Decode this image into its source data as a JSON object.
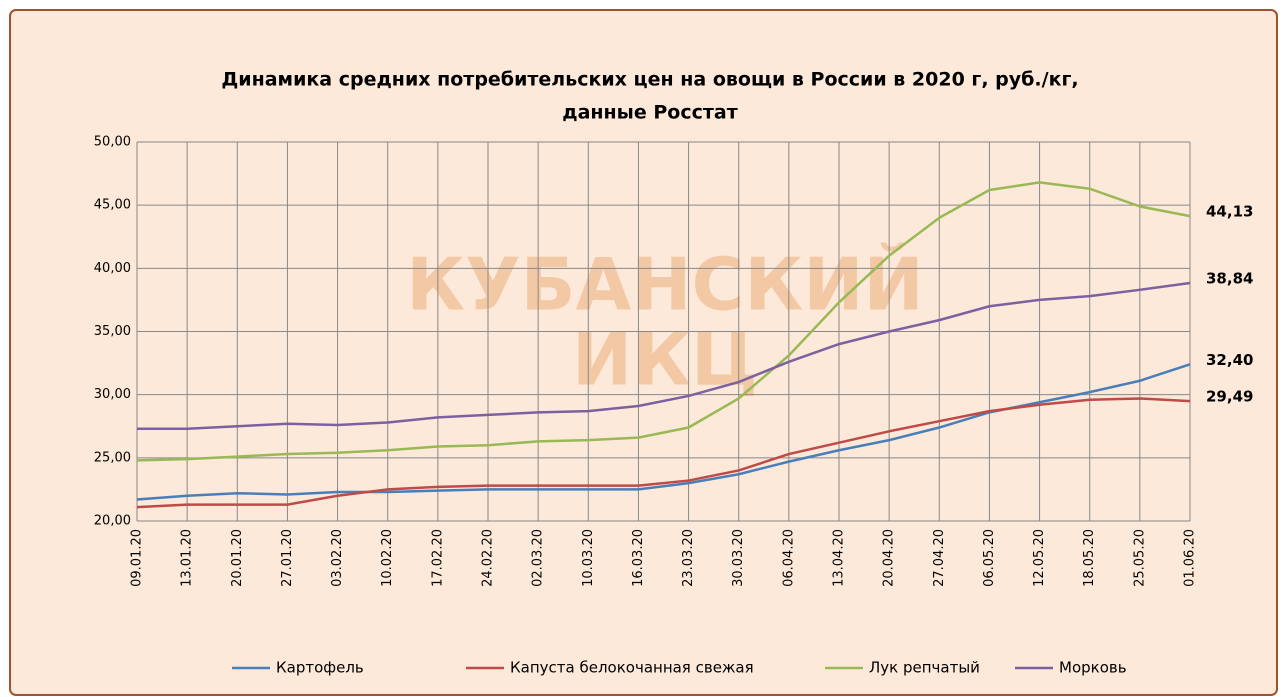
{
  "chart_data": {
    "type": "line",
    "title": [
      "Динамика  средних потребительских цен на овощи в России  в 2020 г, руб./кг,",
      "данные Росстат"
    ],
    "watermark": [
      "КУБАНСКИЙ",
      "ИКЦ"
    ],
    "categories": [
      "09.01.20",
      "13.01.20",
      "20.01.20",
      "27.01.20",
      "03.02.20",
      "10.02.20",
      "17.02.20",
      "24.02.20",
      "02.03.20",
      "10.03.20",
      "16.03.20",
      "23.03.20",
      "30.03.20",
      "06.04.20",
      "13.04.20",
      "20.04.20",
      "27.04.20",
      "06.05.20",
      "12.05.20",
      "18.05.20",
      "25.05.20",
      "01.06.20"
    ],
    "series": [
      {
        "name": "Картофель",
        "color": "#4a7ebb",
        "values": [
          21.7,
          22.0,
          22.2,
          22.1,
          22.3,
          22.3,
          22.4,
          22.5,
          22.5,
          22.5,
          22.5,
          23.0,
          23.7,
          24.7,
          25.6,
          26.4,
          27.4,
          28.6,
          29.4,
          30.2,
          31.1,
          32.4
        ],
        "value_labels": [
          null,
          null,
          null,
          null,
          null,
          null,
          null,
          null,
          null,
          null,
          null,
          null,
          null,
          null,
          null,
          null,
          null,
          null,
          null,
          null,
          null,
          "32,40"
        ]
      },
      {
        "name": "Капуста белокочанная  свежая",
        "color": "#be4b48",
        "values": [
          21.1,
          21.3,
          21.3,
          21.3,
          22.0,
          22.5,
          22.7,
          22.8,
          22.8,
          22.8,
          22.8,
          23.2,
          24.0,
          25.3,
          26.2,
          27.1,
          27.9,
          28.7,
          29.2,
          29.6,
          29.7,
          29.49
        ],
        "value_labels": [
          null,
          null,
          null,
          null,
          null,
          null,
          null,
          null,
          null,
          null,
          null,
          null,
          null,
          null,
          null,
          null,
          null,
          null,
          null,
          null,
          null,
          "29,49"
        ]
      },
      {
        "name": "Лук репчатый",
        "color": "#98b954",
        "values": [
          24.8,
          24.9,
          25.1,
          25.3,
          25.4,
          25.6,
          25.9,
          26.0,
          26.3,
          26.4,
          26.6,
          27.4,
          29.7,
          33.1,
          37.3,
          41.0,
          44.0,
          46.2,
          46.8,
          46.3,
          44.9,
          44.13
        ],
        "value_labels": [
          null,
          null,
          null,
          null,
          null,
          null,
          null,
          null,
          null,
          null,
          null,
          null,
          null,
          null,
          null,
          null,
          null,
          null,
          null,
          null,
          null,
          "44,13"
        ]
      },
      {
        "name": "Морковь",
        "color": "#7d60a0",
        "values": [
          27.3,
          27.3,
          27.5,
          27.7,
          27.6,
          27.8,
          28.2,
          28.4,
          28.6,
          28.7,
          29.1,
          29.9,
          31.0,
          32.6,
          34.0,
          35.0,
          35.9,
          37.0,
          37.5,
          37.8,
          38.3,
          38.84
        ],
        "value_labels": [
          null,
          null,
          null,
          null,
          null,
          null,
          null,
          null,
          null,
          null,
          null,
          null,
          null,
          null,
          null,
          null,
          null,
          null,
          null,
          null,
          null,
          "38,84"
        ]
      }
    ],
    "ylim": [
      20,
      50
    ],
    "yticks": [
      {
        "value": 20,
        "label": "20,00"
      },
      {
        "value": 25,
        "label": "25,00"
      },
      {
        "value": 30,
        "label": "30,00"
      },
      {
        "value": 35,
        "label": "35,00"
      },
      {
        "value": 40,
        "label": "40,00"
      },
      {
        "value": 45,
        "label": "45,00"
      },
      {
        "value": 50,
        "label": "50,00"
      }
    ],
    "grid": true,
    "legend": "bottom"
  }
}
